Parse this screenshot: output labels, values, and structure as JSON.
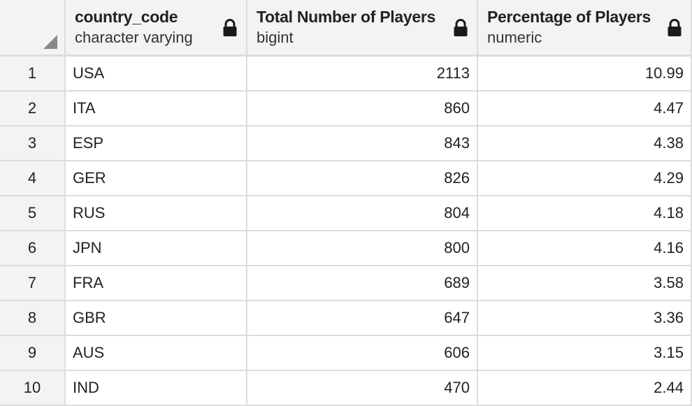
{
  "columns": [
    {
      "name": "country_code",
      "type": "character varying",
      "locked": true,
      "align": "left"
    },
    {
      "name": "Total Number of Players",
      "type": "bigint",
      "locked": true,
      "align": "right"
    },
    {
      "name": "Percentage of Players",
      "type": "numeric",
      "locked": true,
      "align": "right"
    }
  ],
  "rows": [
    {
      "num": "1",
      "cells": [
        "USA",
        "2113",
        "10.99"
      ]
    },
    {
      "num": "2",
      "cells": [
        "ITA",
        "860",
        "4.47"
      ]
    },
    {
      "num": "3",
      "cells": [
        "ESP",
        "843",
        "4.38"
      ]
    },
    {
      "num": "4",
      "cells": [
        "GER",
        "826",
        "4.29"
      ]
    },
    {
      "num": "5",
      "cells": [
        "RUS",
        "804",
        "4.18"
      ]
    },
    {
      "num": "6",
      "cells": [
        "JPN",
        "800",
        "4.16"
      ]
    },
    {
      "num": "7",
      "cells": [
        "FRA",
        "689",
        "3.58"
      ]
    },
    {
      "num": "8",
      "cells": [
        "GBR",
        "647",
        "3.36"
      ]
    },
    {
      "num": "9",
      "cells": [
        "AUS",
        "606",
        "3.15"
      ]
    },
    {
      "num": "10",
      "cells": [
        "IND",
        "470",
        "2.44"
      ]
    }
  ],
  "icons": {
    "lock": "lock-icon",
    "corner": "select-all-corner"
  },
  "colors": {
    "header_bg": "#f3f3f3",
    "grid_line": "#dcdcdc",
    "text": "#222222",
    "lock": "#1a1a1a"
  }
}
